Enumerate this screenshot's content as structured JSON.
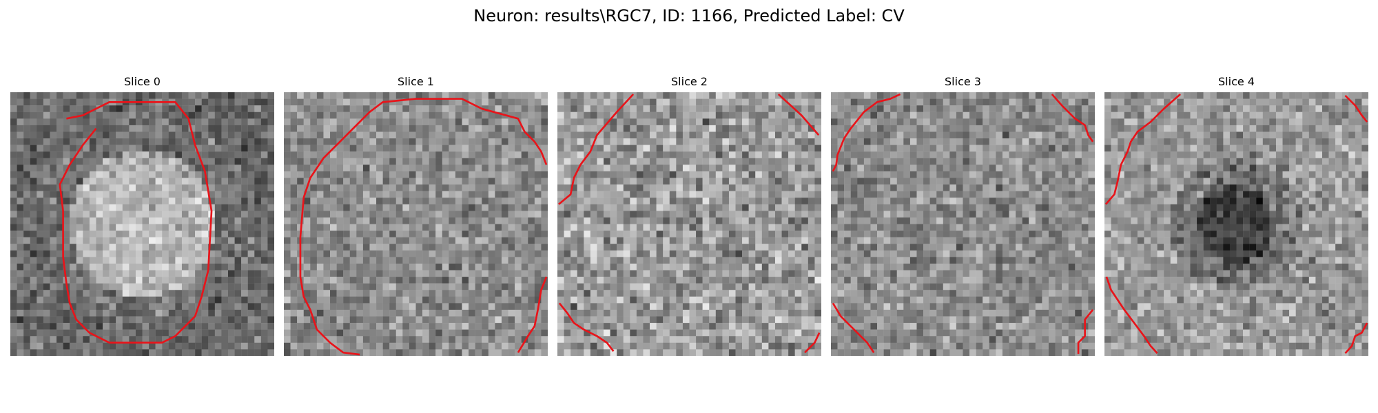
{
  "figure": {
    "title": "Neuron: results\\RGC7, ID: 1166, Predicted Label: CV"
  },
  "slices": [
    {
      "label": "Slice 0",
      "pattern": "bright-center"
    },
    {
      "label": "Slice 1",
      "pattern": "uniform"
    },
    {
      "label": "Slice 2",
      "pattern": "bright-noise"
    },
    {
      "label": "Slice 3",
      "pattern": "uniform"
    },
    {
      "label": "Slice 4",
      "pattern": "dark-center"
    }
  ],
  "colors": {
    "contour": "#e8141a",
    "background": "#ffffff"
  }
}
